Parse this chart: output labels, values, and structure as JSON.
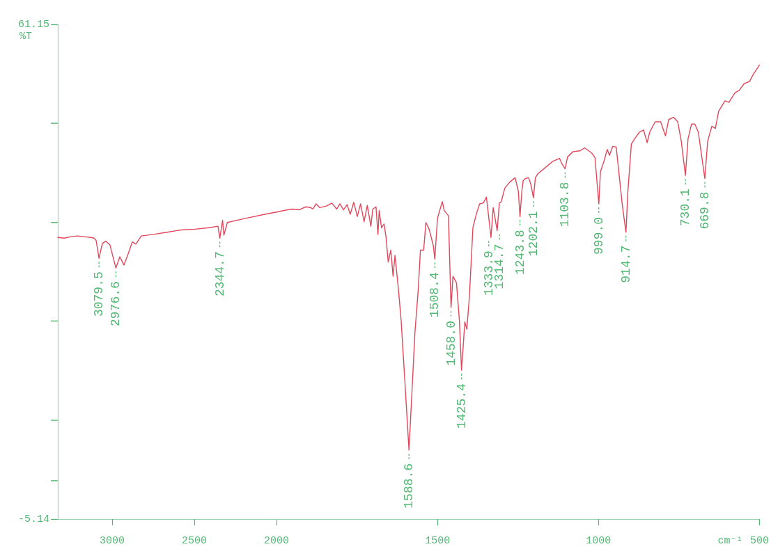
{
  "chart_data": [
    {
      "type": "line",
      "ylabel": "%T",
      "xlim": [
        3330,
        2000
      ],
      "xticks": [
        3000,
        2500,
        2000
      ],
      "ylim": [
        -5.14,
        61.15
      ],
      "yticks": [
        -5.14,
        {
          "value": 0,
          "label": null
        },
        {
          "value": 8.1,
          "label": null
        },
        {
          "value": 21.4,
          "label": null
        },
        {
          "value": 34.6,
          "label": null
        },
        {
          "value": 47.9,
          "label": null
        },
        61.15
      ],
      "x": [
        3330,
        3290,
        3250,
        3210,
        3170,
        3130,
        3110,
        3097,
        3079.5,
        3059,
        3038,
        3013,
        2991,
        2976.6,
        2953,
        2928,
        2902,
        2877,
        2856,
        2822,
        2750,
        2665,
        2580,
        2496,
        2411,
        2356,
        2344.7,
        2328,
        2320,
        2299,
        2199,
        2072,
        2000
      ],
      "series": [
        {
          "color": "#e2475c",
          "values": [
            32.6,
            32.5,
            32.7,
            32.8,
            32.7,
            32.6,
            32.5,
            32.2,
            29.8,
            31.8,
            32.1,
            31.6,
            29.7,
            28.5,
            30.0,
            28.9,
            30.4,
            32.0,
            31.7,
            32.8,
            33.0,
            33.3,
            33.6,
            33.7,
            33.9,
            34.1,
            32.5,
            34.9,
            32.9,
            34.6,
            35.1,
            35.7,
            36.0
          ]
        }
      ],
      "annotations": [
        {
          "text": "3079.5",
          "x": 3079.5,
          "y": 29.8
        },
        {
          "text": "2976.6",
          "x": 2976.6,
          "y": 28.5
        },
        {
          "text": "2344.7",
          "x": 2344.7,
          "y": 32.5
        }
      ]
    },
    {
      "type": "line",
      "xlabel": "cm⁻¹",
      "tick_labels": "x",
      "xlim": [
        2000,
        500
      ],
      "xticks": [
        1500,
        1000,
        500
      ],
      "ylim": [
        -5.14,
        61.15
      ],
      "x": [
        2000,
        1966,
        1951,
        1930,
        1909,
        1894,
        1887,
        1877,
        1866,
        1845,
        1828,
        1813,
        1803,
        1792,
        1781,
        1771,
        1760,
        1749,
        1739,
        1728,
        1718,
        1707,
        1701,
        1691,
        1685,
        1681,
        1674,
        1666,
        1660,
        1653,
        1645,
        1638,
        1632,
        1621,
        1613,
        1602,
        1588.6,
        1579,
        1570,
        1560,
        1553,
        1543,
        1536,
        1526,
        1513,
        1508.4,
        1500,
        1485,
        1479,
        1466,
        1462,
        1458.0,
        1452,
        1441,
        1432,
        1425.4,
        1415,
        1409,
        1401,
        1390,
        1379,
        1369,
        1358,
        1348,
        1333.9,
        1327,
        1314.7,
        1308,
        1302,
        1291,
        1276,
        1259,
        1249,
        1243.8,
        1238,
        1234,
        1227,
        1217,
        1210,
        1202.1,
        1196,
        1189,
        1164,
        1142,
        1121,
        1114,
        1103.8,
        1096,
        1079,
        1058,
        1043,
        1021,
        1011,
        999.0,
        994,
        983,
        973,
        966,
        956,
        945,
        934,
        926,
        914.7,
        909,
        898,
        888,
        873,
        860,
        849,
        841,
        824,
        807,
        792,
        782,
        767,
        754,
        743,
        730.1,
        722,
        711,
        701,
        690,
        669.8,
        661,
        648,
        637,
        627,
        607,
        595,
        576,
        563,
        548,
        531,
        520,
        500
      ],
      "series": [
        {
          "color": "#e2475c",
          "values": [
            36.0,
            36.3,
            36.4,
            36.3,
            36.7,
            36.6,
            36.4,
            37.1,
            36.6,
            36.8,
            37.2,
            36.4,
            37.1,
            36.3,
            37.0,
            35.7,
            37.3,
            35.4,
            37.1,
            34.7,
            36.9,
            34.1,
            36.4,
            36.7,
            33.0,
            36.2,
            33.9,
            34.4,
            32.7,
            29.3,
            30.9,
            27.4,
            30.2,
            25.5,
            21.5,
            13.8,
            4.1,
            12.2,
            19.9,
            25.5,
            30.9,
            30.9,
            34.6,
            33.7,
            31.5,
            29.7,
            35.2,
            37.4,
            36.2,
            35.5,
            29.3,
            23.2,
            27.4,
            26.5,
            21.5,
            14.8,
            21.3,
            20.3,
            24.6,
            33.9,
            35.8,
            37.1,
            37.2,
            38.0,
            32.6,
            36.6,
            33.5,
            37.2,
            37.4,
            39.2,
            40.0,
            40.6,
            38.8,
            35.4,
            38.8,
            40.2,
            40.5,
            40.6,
            39.7,
            37.9,
            40.6,
            41.1,
            42.0,
            42.8,
            43.2,
            42.5,
            41.8,
            43.4,
            44.1,
            44.2,
            44.6,
            43.9,
            43.3,
            37.1,
            41.4,
            42.8,
            44.4,
            43.6,
            44.8,
            44.7,
            40.2,
            36.9,
            33.3,
            38.6,
            45.1,
            45.8,
            46.7,
            47.0,
            45.3,
            46.7,
            48.1,
            48.1,
            46.2,
            48.4,
            48.7,
            48.1,
            45.5,
            40.9,
            45.8,
            47.8,
            47.8,
            46.7,
            40.5,
            45.5,
            47.5,
            47.2,
            49.5,
            50.9,
            50.7,
            52.0,
            52.3,
            53.2,
            53.5,
            54.4,
            55.7
          ]
        }
      ],
      "annotations": [
        {
          "text": "1588.6",
          "x": 1588.6,
          "y": 4.1
        },
        {
          "text": "1508.4",
          "x": 1508.4,
          "y": 29.7
        },
        {
          "text": "1458.0",
          "x": 1458.0,
          "y": 23.2
        },
        {
          "text": "1425.4",
          "x": 1425.4,
          "y": 14.8
        },
        {
          "text": "1333.9",
          "x": 1333.9,
          "y": 32.6
        },
        {
          "text": "1314.7",
          "x": 1314.7,
          "y": 33.5
        },
        {
          "text": "1243.8",
          "x": 1243.8,
          "y": 35.4
        },
        {
          "text": "1202.1",
          "x": 1202.1,
          "y": 37.9
        },
        {
          "text": "1103.8",
          "x": 1103.8,
          "y": 41.8
        },
        {
          "text": "999.0",
          "x": 999.0,
          "y": 37.1
        },
        {
          "text": "914.7",
          "x": 914.7,
          "y": 33.3
        },
        {
          "text": "730.1",
          "x": 730.1,
          "y": 40.9
        },
        {
          "text": "669.8",
          "x": 669.8,
          "y": 40.5
        }
      ]
    }
  ]
}
